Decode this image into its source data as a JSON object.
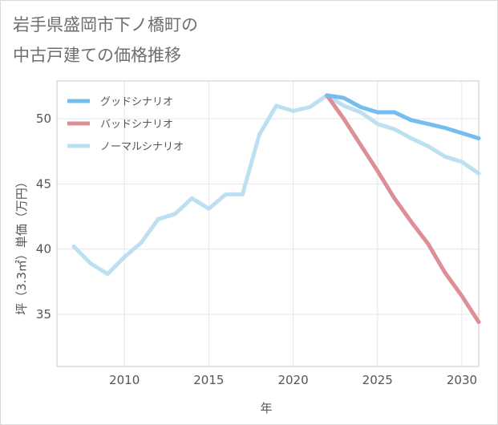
{
  "title": {
    "line1": "岩手県盛岡市下ノ橋町の",
    "line2": "中古戸建ての価格推移"
  },
  "chart_data": {
    "type": "line",
    "xlabel": "年",
    "ylabel": "坪（3.3㎡）単価（万円）",
    "xlim": [
      2006,
      2031
    ],
    "ylim": [
      31,
      52.9
    ],
    "xticks": [
      2010,
      2015,
      2020,
      2025,
      2030
    ],
    "yticks": [
      35,
      40,
      45,
      50
    ],
    "grid": true,
    "legend_position": "top-left",
    "series": [
      {
        "name": "グッドシナリオ",
        "color": "#74bdee",
        "points": [
          [
            2022,
            51.8
          ],
          [
            2023,
            51.6
          ],
          [
            2024,
            50.9
          ],
          [
            2025,
            50.5
          ],
          [
            2026,
            50.5
          ],
          [
            2027,
            49.9
          ],
          [
            2028,
            49.6
          ],
          [
            2029,
            49.3
          ],
          [
            2030,
            48.9
          ],
          [
            2031,
            48.5
          ]
        ]
      },
      {
        "name": "バッドシナリオ",
        "color": "#dc8f97",
        "points": [
          [
            2022,
            51.8
          ],
          [
            2023,
            50.0
          ],
          [
            2024,
            48.0
          ],
          [
            2025,
            46.0
          ],
          [
            2026,
            43.9
          ],
          [
            2027,
            42.1
          ],
          [
            2028,
            40.4
          ],
          [
            2029,
            38.2
          ],
          [
            2030,
            36.4
          ],
          [
            2031,
            34.4
          ]
        ]
      },
      {
        "name": "ノーマルシナリオ",
        "color": "#bde0f0",
        "points": [
          [
            2007,
            40.2
          ],
          [
            2008,
            38.9
          ],
          [
            2009,
            38.1
          ],
          [
            2010,
            39.4
          ],
          [
            2011,
            40.5
          ],
          [
            2012,
            42.3
          ],
          [
            2013,
            42.7
          ],
          [
            2014,
            43.9
          ],
          [
            2015,
            43.1
          ],
          [
            2016,
            44.2
          ],
          [
            2017,
            44.2
          ],
          [
            2018,
            48.8
          ],
          [
            2019,
            51.0
          ],
          [
            2020,
            50.6
          ],
          [
            2021,
            50.9
          ],
          [
            2022,
            51.8
          ],
          [
            2023,
            51.0
          ],
          [
            2024,
            50.5
          ],
          [
            2025,
            49.6
          ],
          [
            2026,
            49.2
          ],
          [
            2027,
            48.5
          ],
          [
            2028,
            47.9
          ],
          [
            2029,
            47.1
          ],
          [
            2030,
            46.7
          ],
          [
            2031,
            45.8
          ]
        ]
      }
    ]
  }
}
